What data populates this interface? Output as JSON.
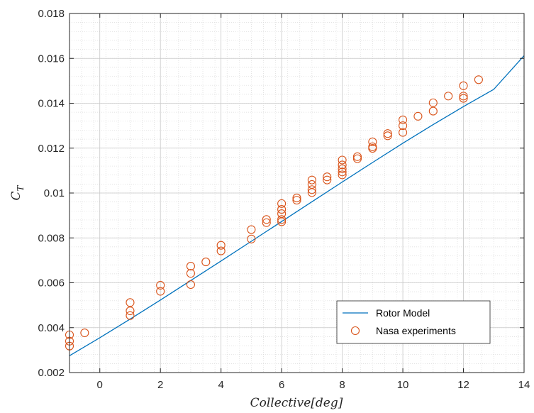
{
  "chart_data": {
    "type": "line",
    "title": "",
    "xlabel": "Collective[deg]",
    "ylabel": "C_T",
    "ylabel_main": "C",
    "ylabel_sub": "T",
    "xlim": [
      -1,
      14
    ],
    "ylim": [
      0.002,
      0.018
    ],
    "x_ticks": [
      0,
      2,
      4,
      6,
      8,
      10,
      12,
      14
    ],
    "x_tick_labels": [
      "0",
      "2",
      "4",
      "6",
      "8",
      "10",
      "12",
      "14"
    ],
    "y_ticks": [
      0.002,
      0.004,
      0.006,
      0.008,
      0.01,
      0.012,
      0.014,
      0.016,
      0.018
    ],
    "y_tick_labels": [
      "0.002",
      "0.004",
      "0.006",
      "0.008",
      "0.01",
      "0.012",
      "0.014",
      "0.016",
      "0.018"
    ],
    "grid": true,
    "minor_grid": true,
    "legend_position": "bottom-right",
    "series": [
      {
        "name": "Rotor Model",
        "kind": "line",
        "color": "#0072BD",
        "x": [
          -1,
          0,
          1,
          2,
          3,
          4,
          5,
          6,
          7,
          8,
          9,
          10,
          11,
          12,
          13,
          14
        ],
        "y": [
          0.00275,
          0.00355,
          0.00438,
          0.00523,
          0.0061,
          0.00697,
          0.00785,
          0.00873,
          0.00961,
          0.01049,
          0.01136,
          0.01222,
          0.01305,
          0.01385,
          0.01462,
          0.01612
        ]
      },
      {
        "name": "Nasa experiments",
        "kind": "scatter",
        "color": "#D95319",
        "x": [
          -1,
          -1,
          -1,
          -0.5,
          1,
          1,
          1,
          2,
          2,
          3,
          3,
          3,
          3.5,
          4,
          4,
          5,
          5,
          5.5,
          5.5,
          6,
          6,
          6,
          6,
          6,
          6.5,
          6.5,
          7,
          7,
          7,
          7,
          7.5,
          7.5,
          8,
          8,
          8,
          8,
          8,
          8.5,
          8.5,
          9,
          9,
          9,
          9.5,
          9.5,
          10,
          10,
          10,
          10.5,
          11,
          11,
          11.5,
          12,
          12,
          12,
          12.5
        ],
        "y": [
          0.00368,
          0.0034,
          0.00318,
          0.00377,
          0.00512,
          0.00475,
          0.00454,
          0.00589,
          0.00562,
          0.00674,
          0.00642,
          0.00592,
          0.00693,
          0.00767,
          0.00742,
          0.00837,
          0.00795,
          0.00882,
          0.00868,
          0.00953,
          0.00927,
          0.00908,
          0.00882,
          0.00872,
          0.00978,
          0.00968,
          0.01058,
          0.01038,
          0.01015,
          0.01002,
          0.01072,
          0.01058,
          0.01147,
          0.01125,
          0.01108,
          0.01094,
          0.01081,
          0.01162,
          0.01153,
          0.01228,
          0.01206,
          0.01199,
          0.01265,
          0.01255,
          0.01326,
          0.013,
          0.0127,
          0.01342,
          0.01402,
          0.01365,
          0.01432,
          0.01478,
          0.01432,
          0.01422,
          0.01505
        ]
      }
    ]
  }
}
